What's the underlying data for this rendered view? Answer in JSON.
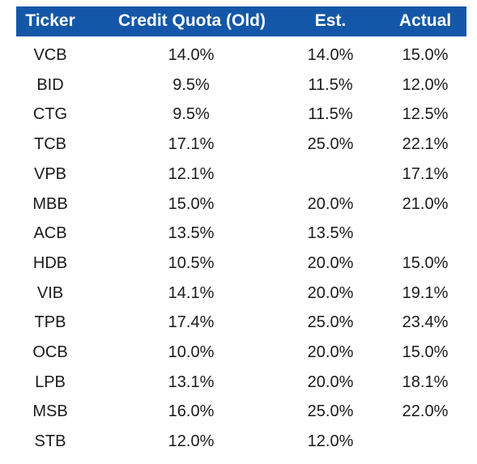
{
  "table": {
    "headers": [
      "Ticker",
      "Credit Quota (Old)",
      "Est.",
      "Actual"
    ],
    "rows": [
      [
        "VCB",
        "14.0%",
        "14.0%",
        "15.0%"
      ],
      [
        "BID",
        "9.5%",
        "11.5%",
        "12.0%"
      ],
      [
        "CTG",
        "9.5%",
        "11.5%",
        "12.5%"
      ],
      [
        "TCB",
        "17.1%",
        "25.0%",
        "22.1%"
      ],
      [
        "VPB",
        "12.1%",
        null,
        "17.1%"
      ],
      [
        "MBB",
        "15.0%",
        "20.0%",
        "21.0%"
      ],
      [
        "ACB",
        "13.5%",
        "13.5%",
        null
      ],
      [
        "HDB",
        "10.5%",
        "20.0%",
        "15.0%"
      ],
      [
        "VIB",
        "14.1%",
        "20.0%",
        "19.1%"
      ],
      [
        "TPB",
        "17.4%",
        "25.0%",
        "23.4%"
      ],
      [
        "OCB",
        "10.0%",
        "20.0%",
        "15.0%"
      ],
      [
        "LPB",
        "13.1%",
        "20.0%",
        "18.1%"
      ],
      [
        "MSB",
        "16.0%",
        "25.0%",
        "22.0%"
      ],
      [
        "STB",
        "12.0%",
        "12.0%",
        null
      ]
    ]
  }
}
